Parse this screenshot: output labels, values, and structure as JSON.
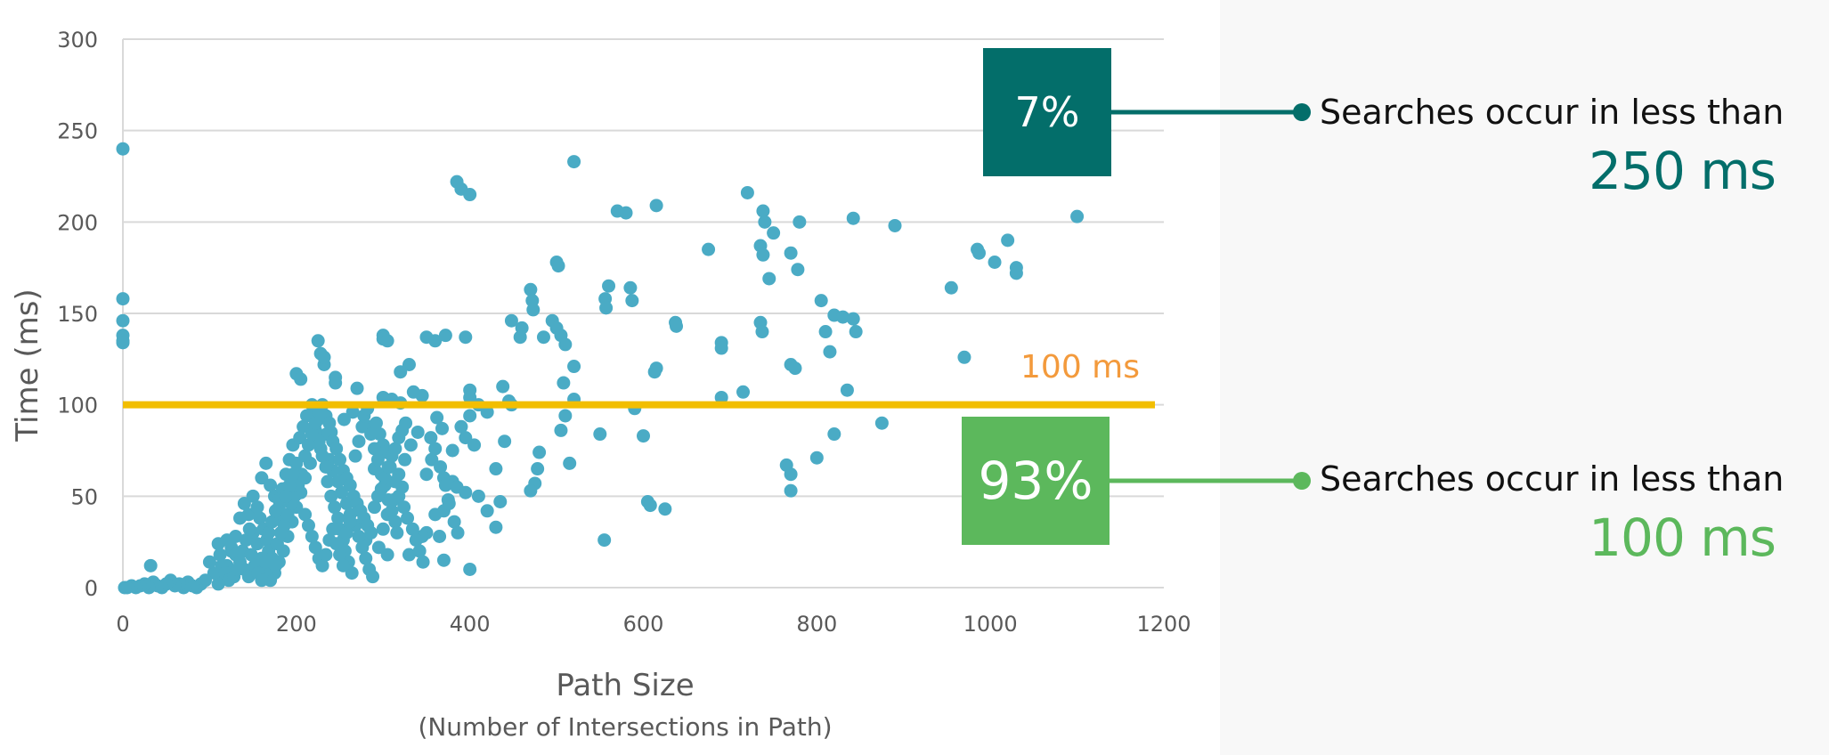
{
  "chart_data": {
    "type": "scatter",
    "xlabel": "Path Size",
    "xlabel_sub": "(Number of Intersections in Path)",
    "ylabel": "Time (ms)",
    "xlim": [
      0,
      1200
    ],
    "ylim": [
      0,
      300
    ],
    "x_ticks": [
      "0",
      "200",
      "400",
      "600",
      "800",
      "1000",
      "1200"
    ],
    "y_ticks": [
      "0",
      "50",
      "100",
      "150",
      "200",
      "250",
      "300"
    ],
    "grid": "horizontal",
    "point_color": "#4aabc5",
    "threshold": {
      "value": 100,
      "label": "100 ms",
      "line_color": "#f2be00",
      "label_color": "#f39a3c"
    },
    "points": [
      [
        0,
        240
      ],
      [
        0,
        158
      ],
      [
        0,
        146
      ],
      [
        0,
        138
      ],
      [
        0,
        135
      ],
      [
        0,
        134
      ],
      [
        520,
        233
      ],
      [
        385,
        222
      ],
      [
        390,
        218
      ],
      [
        400,
        215
      ],
      [
        720,
        216
      ],
      [
        738,
        206
      ],
      [
        740,
        200
      ],
      [
        780,
        200
      ],
      [
        842,
        202
      ],
      [
        890,
        198
      ],
      [
        1100,
        203
      ],
      [
        1020,
        190
      ],
      [
        985,
        185
      ],
      [
        987,
        183
      ],
      [
        1005,
        178
      ],
      [
        1030,
        175
      ],
      [
        1030,
        172
      ],
      [
        570,
        206
      ],
      [
        580,
        205
      ],
      [
        615,
        209
      ],
      [
        675,
        185
      ],
      [
        735,
        187
      ],
      [
        738,
        182
      ],
      [
        750,
        194
      ],
      [
        770,
        183
      ],
      [
        778,
        174
      ],
      [
        745,
        169
      ],
      [
        955,
        164
      ],
      [
        500,
        178
      ],
      [
        502,
        176
      ],
      [
        470,
        163
      ],
      [
        472,
        157
      ],
      [
        473,
        152
      ],
      [
        448,
        146
      ],
      [
        495,
        146
      ],
      [
        500,
        142
      ],
      [
        505,
        138
      ],
      [
        485,
        137
      ],
      [
        510,
        133
      ],
      [
        458,
        137
      ],
      [
        460,
        142
      ],
      [
        560,
        165
      ],
      [
        556,
        158
      ],
      [
        557,
        153
      ],
      [
        585,
        164
      ],
      [
        587,
        157
      ],
      [
        637,
        145
      ],
      [
        638,
        143
      ],
      [
        690,
        134
      ],
      [
        690,
        131
      ],
      [
        735,
        145
      ],
      [
        737,
        140
      ],
      [
        805,
        157
      ],
      [
        820,
        149
      ],
      [
        830,
        148
      ],
      [
        842,
        147
      ],
      [
        845,
        140
      ],
      [
        810,
        140
      ],
      [
        815,
        129
      ],
      [
        770,
        122
      ],
      [
        775,
        120
      ],
      [
        715,
        107
      ],
      [
        835,
        108
      ],
      [
        970,
        126
      ],
      [
        875,
        90
      ],
      [
        820,
        84
      ],
      [
        800,
        71
      ],
      [
        765,
        67
      ],
      [
        770,
        62
      ],
      [
        770,
        53
      ],
      [
        690,
        104
      ],
      [
        615,
        120
      ],
      [
        613,
        118
      ],
      [
        520,
        121
      ],
      [
        508,
        112
      ],
      [
        510,
        94
      ],
      [
        505,
        86
      ],
      [
        515,
        68
      ],
      [
        480,
        74
      ],
      [
        478,
        65
      ],
      [
        475,
        57
      ],
      [
        470,
        53
      ],
      [
        440,
        80
      ],
      [
        550,
        84
      ],
      [
        555,
        26
      ],
      [
        600,
        83
      ],
      [
        590,
        98
      ],
      [
        605,
        47
      ],
      [
        608,
        45
      ],
      [
        625,
        43
      ],
      [
        520,
        103
      ],
      [
        300,
        138
      ],
      [
        300,
        136
      ],
      [
        305,
        135
      ],
      [
        350,
        137
      ],
      [
        360,
        135
      ],
      [
        372,
        138
      ],
      [
        395,
        137
      ],
      [
        320,
        118
      ],
      [
        330,
        122
      ],
      [
        335,
        107
      ],
      [
        345,
        105
      ],
      [
        300,
        104
      ],
      [
        310,
        103
      ],
      [
        320,
        101
      ],
      [
        270,
        109
      ],
      [
        245,
        115
      ],
      [
        245,
        112
      ],
      [
        200,
        117
      ],
      [
        205,
        114
      ],
      [
        225,
        135
      ],
      [
        228,
        128
      ],
      [
        232,
        122
      ],
      [
        232,
        126
      ],
      [
        400,
        108
      ],
      [
        400,
        104
      ],
      [
        410,
        100
      ],
      [
        420,
        96
      ],
      [
        438,
        110
      ],
      [
        445,
        102
      ],
      [
        448,
        100
      ],
      [
        400,
        94
      ],
      [
        390,
        88
      ],
      [
        395,
        82
      ],
      [
        405,
        78
      ],
      [
        380,
        75
      ],
      [
        370,
        60
      ],
      [
        380,
        58
      ],
      [
        385,
        55
      ],
      [
        395,
        52
      ],
      [
        375,
        48
      ],
      [
        370,
        42
      ],
      [
        360,
        40
      ],
      [
        350,
        30
      ],
      [
        345,
        28
      ],
      [
        365,
        28
      ],
      [
        370,
        15
      ],
      [
        400,
        10
      ],
      [
        410,
        50
      ],
      [
        420,
        42
      ],
      [
        430,
        65
      ],
      [
        435,
        47
      ],
      [
        430,
        33
      ],
      [
        362,
        93
      ],
      [
        368,
        87
      ],
      [
        355,
        82
      ],
      [
        340,
        85
      ],
      [
        332,
        78
      ],
      [
        325,
        70
      ],
      [
        318,
        62
      ],
      [
        322,
        55
      ],
      [
        312,
        48
      ],
      [
        305,
        40
      ],
      [
        300,
        32
      ],
      [
        295,
        22
      ],
      [
        330,
        18
      ],
      [
        305,
        18
      ],
      [
        280,
        26
      ],
      [
        290,
        65
      ],
      [
        300,
        78
      ],
      [
        285,
        88
      ],
      [
        265,
        96
      ],
      [
        255,
        92
      ],
      [
        240,
        85
      ],
      [
        228,
        76
      ],
      [
        216,
        68
      ],
      [
        210,
        60
      ],
      [
        205,
        52
      ],
      [
        200,
        44
      ],
      [
        195,
        36
      ],
      [
        190,
        28
      ],
      [
        185,
        20
      ],
      [
        180,
        14
      ],
      [
        175,
        8
      ],
      [
        170,
        4
      ],
      [
        165,
        10
      ],
      [
        160,
        16
      ],
      [
        155,
        24
      ],
      [
        150,
        30
      ],
      [
        145,
        40
      ],
      [
        140,
        46
      ],
      [
        135,
        38
      ],
      [
        130,
        28
      ],
      [
        125,
        20
      ],
      [
        120,
        12
      ],
      [
        115,
        6
      ],
      [
        110,
        2
      ],
      [
        105,
        8
      ],
      [
        100,
        14
      ],
      [
        95,
        4
      ],
      [
        90,
        2
      ],
      [
        85,
        0
      ],
      [
        80,
        1
      ],
      [
        75,
        3
      ],
      [
        70,
        0
      ],
      [
        65,
        2
      ],
      [
        60,
        1
      ],
      [
        55,
        4
      ],
      [
        50,
        2
      ],
      [
        45,
        0
      ],
      [
        40,
        1
      ],
      [
        35,
        3
      ],
      [
        32,
        12
      ],
      [
        30,
        0
      ],
      [
        25,
        2
      ],
      [
        20,
        1
      ],
      [
        15,
        0
      ],
      [
        10,
        1
      ],
      [
        5,
        0
      ],
      [
        2,
        0
      ],
      [
        220,
        98
      ],
      [
        225,
        92
      ],
      [
        235,
        84
      ],
      [
        238,
        70
      ],
      [
        242,
        64
      ],
      [
        248,
        58
      ],
      [
        252,
        52
      ],
      [
        258,
        46
      ],
      [
        262,
        40
      ],
      [
        268,
        34
      ],
      [
        272,
        28
      ],
      [
        276,
        22
      ],
      [
        280,
        16
      ],
      [
        284,
        10
      ],
      [
        288,
        6
      ],
      [
        292,
        90
      ],
      [
        296,
        84
      ],
      [
        302,
        74
      ],
      [
        308,
        66
      ],
      [
        314,
        58
      ],
      [
        318,
        50
      ],
      [
        324,
        44
      ],
      [
        328,
        38
      ],
      [
        334,
        32
      ],
      [
        338,
        26
      ],
      [
        342,
        20
      ],
      [
        346,
        14
      ],
      [
        350,
        62
      ],
      [
        356,
        70
      ],
      [
        360,
        76
      ],
      [
        366,
        66
      ],
      [
        372,
        56
      ],
      [
        376,
        46
      ],
      [
        382,
        36
      ],
      [
        386,
        30
      ],
      [
        160,
        60
      ],
      [
        165,
        68
      ],
      [
        170,
        56
      ],
      [
        175,
        50
      ],
      [
        180,
        44
      ],
      [
        185,
        38
      ],
      [
        188,
        62
      ],
      [
        192,
        70
      ],
      [
        196,
        78
      ],
      [
        204,
        82
      ],
      [
        208,
        88
      ],
      [
        212,
        94
      ],
      [
        218,
        100
      ],
      [
        222,
        86
      ],
      [
        226,
        80
      ],
      [
        230,
        72
      ],
      [
        234,
        66
      ],
      [
        236,
        58
      ],
      [
        240,
        50
      ],
      [
        244,
        44
      ],
      [
        248,
        38
      ],
      [
        250,
        32
      ],
      [
        254,
        26
      ],
      [
        256,
        20
      ],
      [
        260,
        14
      ],
      [
        264,
        8
      ],
      [
        268,
        72
      ],
      [
        272,
        80
      ],
      [
        276,
        88
      ],
      [
        278,
        94
      ],
      [
        282,
        98
      ],
      [
        286,
        84
      ],
      [
        290,
        76
      ],
      [
        294,
        70
      ],
      [
        298,
        62
      ],
      [
        302,
        56
      ],
      [
        306,
        48
      ],
      [
        310,
        42
      ],
      [
        314,
        36
      ],
      [
        316,
        30
      ],
      [
        150,
        50
      ],
      [
        155,
        44
      ],
      [
        158,
        38
      ],
      [
        162,
        32
      ],
      [
        166,
        26
      ],
      [
        168,
        20
      ],
      [
        172,
        16
      ],
      [
        176,
        12
      ],
      [
        178,
        24
      ],
      [
        182,
        30
      ],
      [
        186,
        34
      ],
      [
        190,
        40
      ],
      [
        194,
        46
      ],
      [
        198,
        50
      ],
      [
        202,
        56
      ],
      [
        206,
        62
      ],
      [
        210,
        40
      ],
      [
        214,
        34
      ],
      [
        218,
        28
      ],
      [
        222,
        22
      ],
      [
        226,
        16
      ],
      [
        230,
        12
      ],
      [
        234,
        18
      ],
      [
        238,
        26
      ],
      [
        242,
        32
      ],
      [
        246,
        24
      ],
      [
        250,
        18
      ],
      [
        254,
        12
      ],
      [
        258,
        30
      ],
      [
        262,
        36
      ],
      [
        120,
        26
      ],
      [
        125,
        22
      ],
      [
        130,
        18
      ],
      [
        135,
        14
      ],
      [
        140,
        10
      ],
      [
        145,
        6
      ],
      [
        110,
        24
      ],
      [
        112,
        18
      ],
      [
        114,
        12
      ],
      [
        118,
        8
      ],
      [
        122,
        4
      ],
      [
        128,
        6
      ],
      [
        132,
        10
      ],
      [
        138,
        20
      ],
      [
        142,
        26
      ],
      [
        146,
        32
      ],
      [
        148,
        18
      ],
      [
        152,
        12
      ],
      [
        156,
        8
      ],
      [
        160,
        4
      ],
      [
        164,
        14
      ],
      [
        168,
        30
      ],
      [
        172,
        36
      ],
      [
        176,
        42
      ],
      [
        180,
        48
      ],
      [
        184,
        54
      ],
      [
        188,
        50
      ],
      [
        192,
        56
      ],
      [
        196,
        62
      ],
      [
        200,
        68
      ],
      [
        210,
        72
      ],
      [
        214,
        78
      ],
      [
        218,
        84
      ],
      [
        222,
        90
      ],
      [
        226,
        96
      ],
      [
        230,
        100
      ],
      [
        234,
        94
      ],
      [
        238,
        90
      ],
      [
        242,
        80
      ],
      [
        246,
        76
      ],
      [
        250,
        70
      ],
      [
        254,
        64
      ],
      [
        258,
        60
      ],
      [
        262,
        56
      ],
      [
        266,
        50
      ],
      [
        270,
        46
      ],
      [
        274,
        42
      ],
      [
        278,
        38
      ],
      [
        282,
        34
      ],
      [
        286,
        30
      ],
      [
        290,
        44
      ],
      [
        294,
        50
      ],
      [
        298,
        54
      ],
      [
        302,
        60
      ],
      [
        306,
        66
      ],
      [
        310,
        72
      ],
      [
        314,
        76
      ],
      [
        318,
        82
      ],
      [
        322,
        86
      ],
      [
        326,
        90
      ]
    ]
  },
  "callouts": [
    {
      "box_label": "7%",
      "box_color": "#036e6a",
      "text": "Searches occur in less than",
      "value": "250 ms",
      "value_color": "#036e6a"
    },
    {
      "box_label": "93%",
      "box_color": "#5cb85c",
      "text": "Searches occur in less than",
      "value": "100 ms",
      "value_color": "#5cb85c"
    }
  ]
}
